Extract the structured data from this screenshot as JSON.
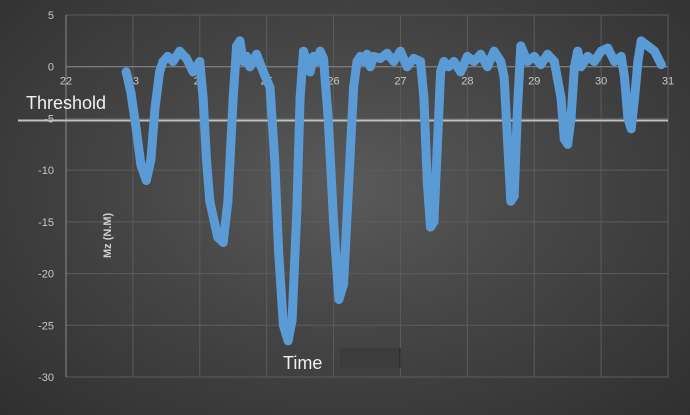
{
  "chart_data": {
    "type": "line",
    "title": "",
    "xlabel": "Time",
    "ylabel": "Mz (N.M)",
    "xlim": [
      22,
      31
    ],
    "ylim": [
      -30,
      5
    ],
    "x_ticks": [
      22,
      23,
      24,
      25,
      26,
      27,
      28,
      29,
      30,
      31
    ],
    "y_ticks": [
      5,
      0,
      -5,
      -10,
      -15,
      -20,
      -25,
      -30
    ],
    "grid": true,
    "legend": "none",
    "series_color": "#5b9bd5",
    "threshold": {
      "label": "Threshold",
      "value": -5.2,
      "color": "#c0c0c0"
    },
    "series": [
      {
        "x": [
          22.9,
          22.97,
          23.05,
          23.12,
          23.2,
          23.27,
          23.33,
          23.4,
          23.45,
          23.52,
          23.6,
          23.7,
          23.8,
          23.9,
          24.0,
          24.05,
          24.1,
          24.15,
          24.2,
          24.27,
          24.35,
          24.42,
          24.5,
          24.55,
          24.6,
          24.65,
          24.7,
          24.75,
          24.85,
          24.95,
          25.05,
          25.12,
          25.18,
          25.25,
          25.32,
          25.38,
          25.45,
          25.5,
          25.55,
          25.6,
          25.65,
          25.7,
          25.75,
          25.8,
          25.85,
          25.92,
          26.0,
          26.08,
          26.15,
          26.22,
          26.3,
          26.35,
          26.4,
          26.45,
          26.5,
          26.55,
          26.6,
          26.7,
          26.8,
          26.9,
          27.0,
          27.1,
          27.2,
          27.3,
          27.35,
          27.4,
          27.45,
          27.5,
          27.55,
          27.6,
          27.65,
          27.72,
          27.8,
          27.9,
          28.0,
          28.1,
          28.2,
          28.3,
          28.4,
          28.5,
          28.55,
          28.6,
          28.65,
          28.7,
          28.75,
          28.8,
          28.9,
          29.0,
          29.1,
          29.2,
          29.3,
          29.4,
          29.45,
          29.5,
          29.55,
          29.6,
          29.65,
          29.7,
          29.8,
          29.9,
          30.0,
          30.1,
          30.2,
          30.3,
          30.35,
          30.4,
          30.45,
          30.5,
          30.55,
          30.6,
          30.7,
          30.8,
          30.9
        ],
        "y": [
          -0.5,
          -2.5,
          -6.0,
          -9.5,
          -11.0,
          -9.0,
          -4.0,
          -0.5,
          0.5,
          1.0,
          0.5,
          1.5,
          0.8,
          -0.5,
          0.5,
          -3.0,
          -9.0,
          -13.0,
          -14.5,
          -16.5,
          -17.0,
          -13.0,
          -3.0,
          2.0,
          2.5,
          0.5,
          1.0,
          0.0,
          1.2,
          -0.5,
          -2.0,
          -9.0,
          -18.0,
          -25.0,
          -26.5,
          -24.5,
          -14.0,
          -3.0,
          1.5,
          0.5,
          -0.5,
          1.0,
          0.5,
          1.5,
          0.8,
          -5.0,
          -15.0,
          -22.5,
          -21.0,
          -12.0,
          -2.0,
          0.5,
          1.0,
          0.5,
          1.2,
          0.0,
          1.0,
          0.8,
          1.3,
          0.5,
          1.5,
          0.0,
          0.8,
          0.5,
          -3.0,
          -11.0,
          -15.5,
          -15.0,
          -8.0,
          -0.5,
          0.5,
          0.0,
          0.5,
          -0.5,
          1.0,
          0.5,
          1.2,
          0.0,
          1.5,
          0.5,
          -1.0,
          -7.0,
          -13.0,
          -12.5,
          -4.0,
          2.0,
          0.5,
          1.0,
          0.2,
          1.2,
          0.5,
          -3.0,
          -7.0,
          -7.5,
          -5.0,
          0.0,
          1.5,
          0.0,
          1.0,
          0.5,
          1.5,
          1.8,
          0.5,
          1.0,
          -1.0,
          -5.0,
          -6.0,
          -3.0,
          0.5,
          2.5,
          2.0,
          1.5,
          0.2
        ]
      }
    ]
  }
}
